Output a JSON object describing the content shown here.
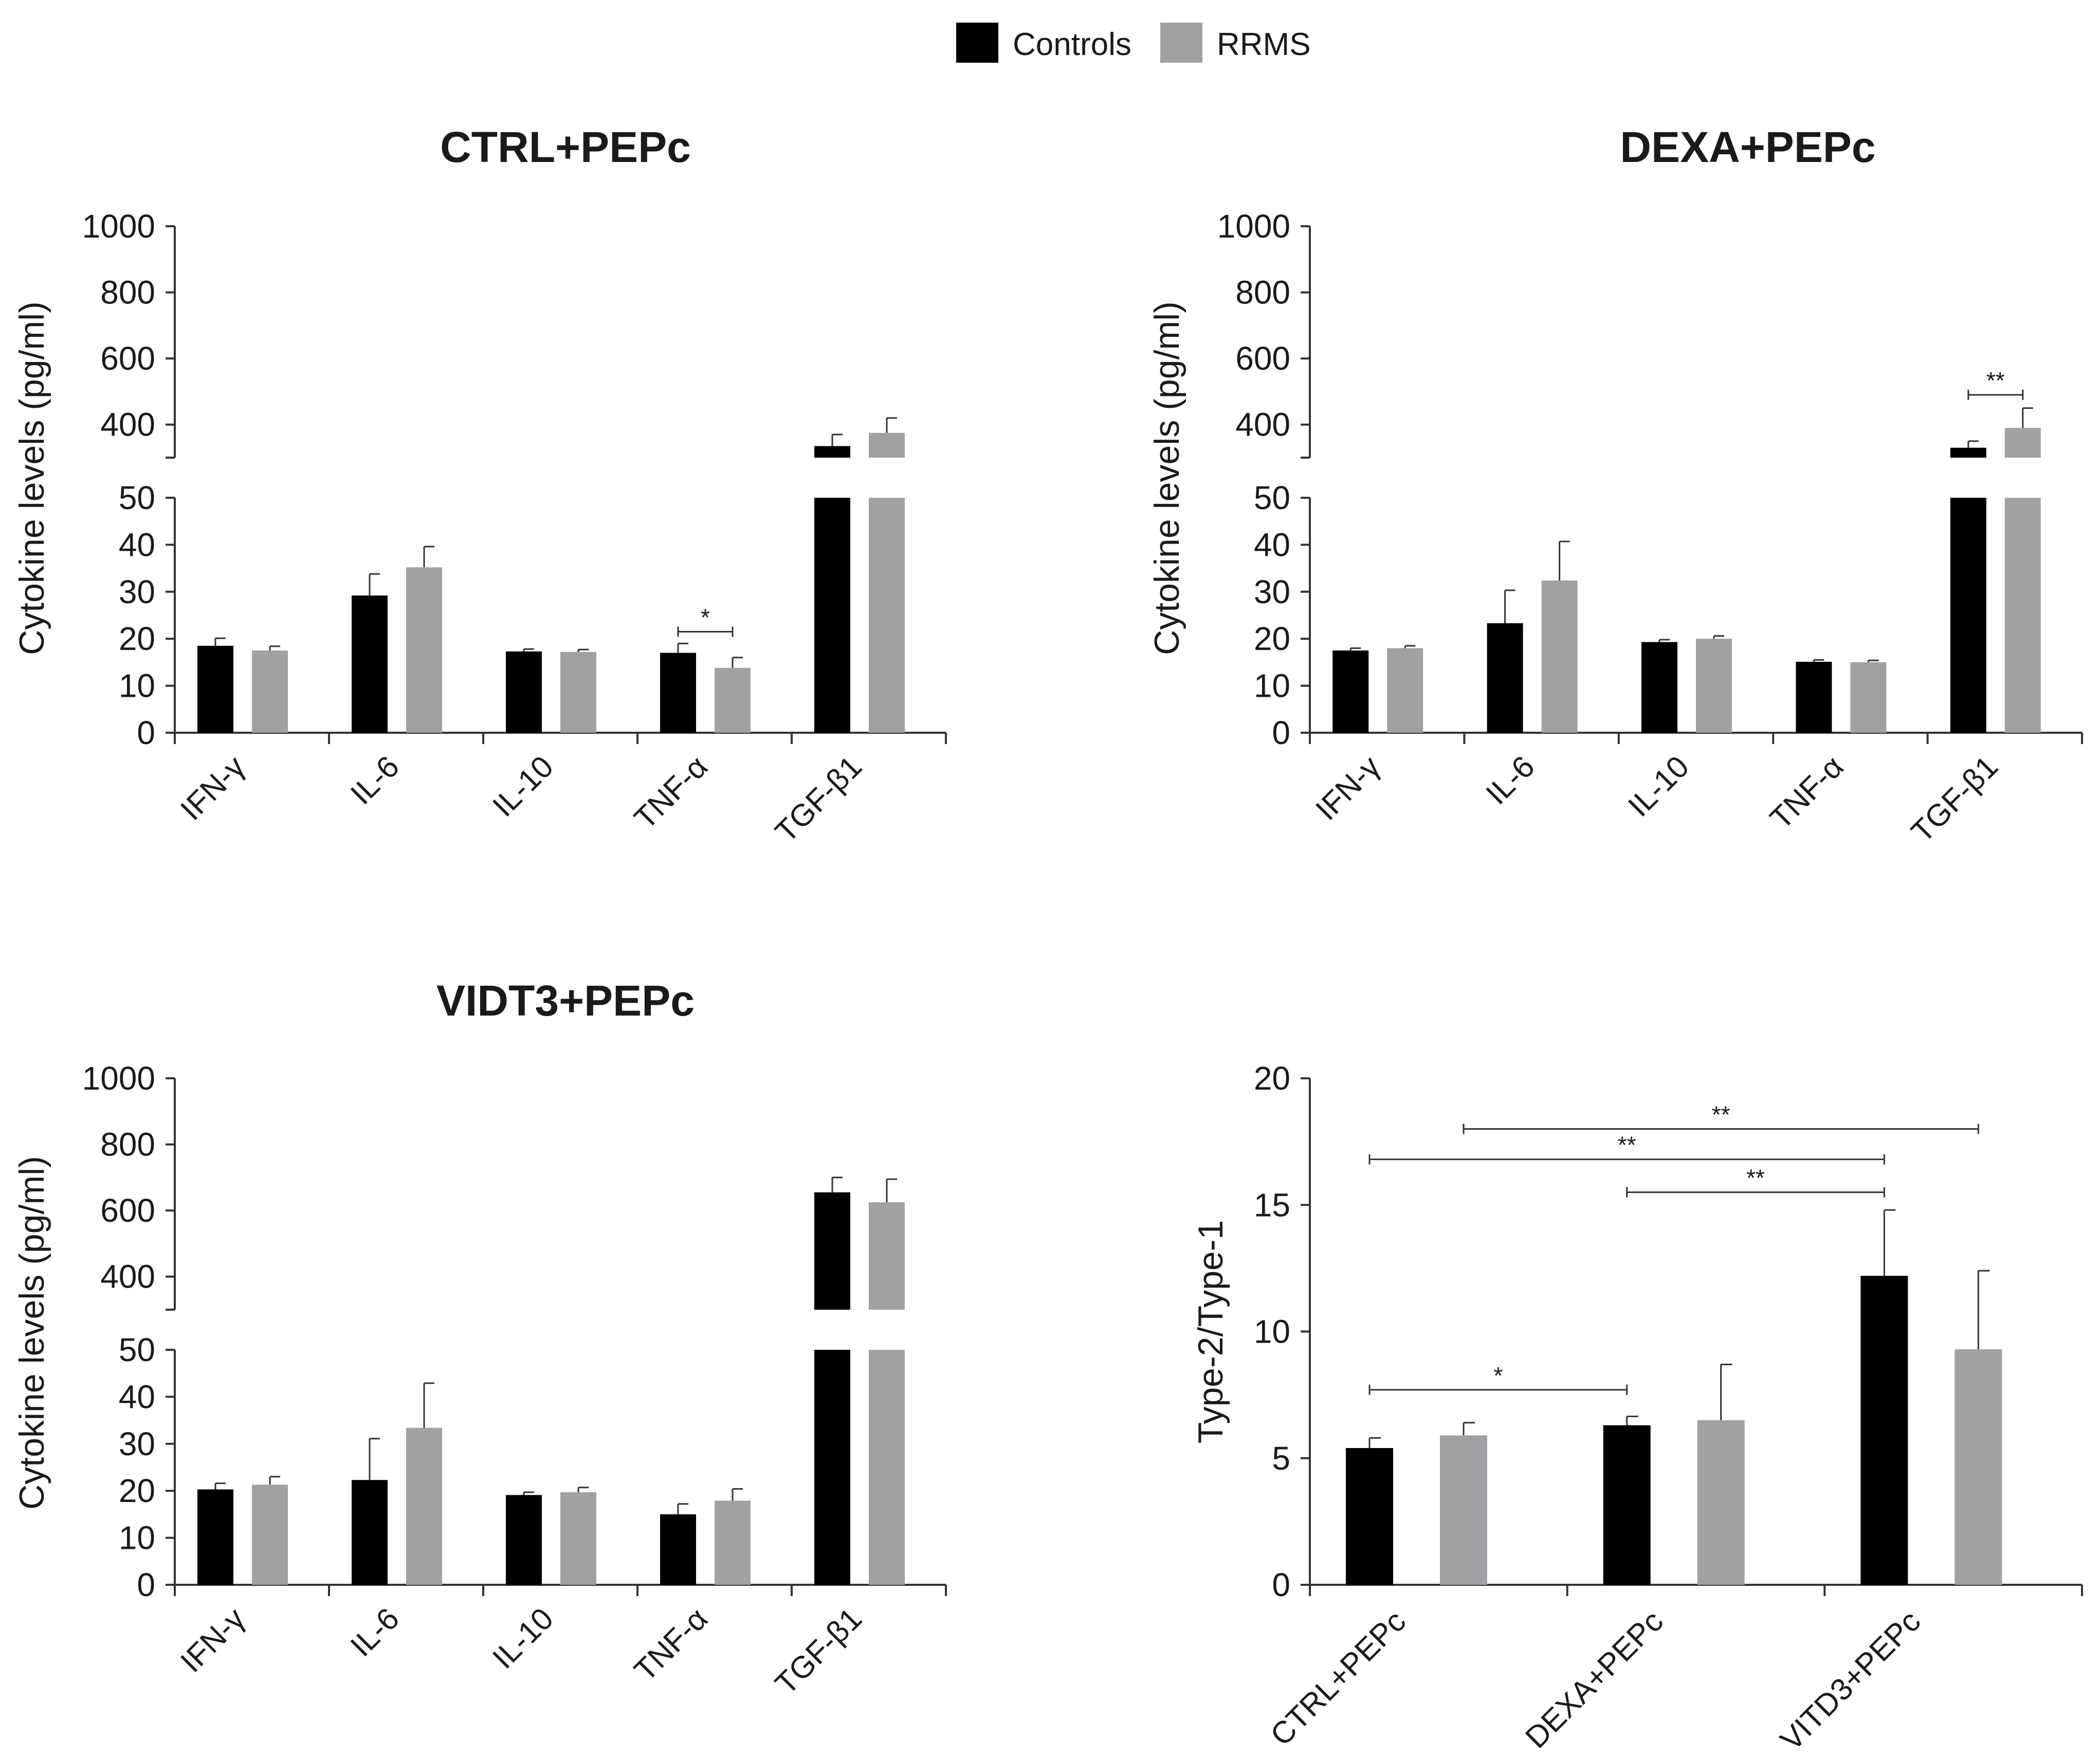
{
  "colors": {
    "controls": "#000000",
    "rrms": "#a1a1a4",
    "axis": "#333333"
  },
  "legend": {
    "items": [
      "Controls",
      "RRMS"
    ]
  },
  "chart_data": [
    {
      "type": "bar",
      "title": "CTRL+PEPc",
      "ylabel": "Cytokine levels (pg/ml)",
      "xlabel": "",
      "categories": [
        "IFN-γ",
        "IL-6",
        "IL-10",
        "TNF-α",
        "TGF-β1"
      ],
      "broken_axis": {
        "lower": [
          0,
          50
        ],
        "upper": [
          300,
          1000
        ]
      },
      "yticks_lower": [
        "0",
        "10",
        "20",
        "30",
        "40",
        "50"
      ],
      "yticks_upper": [
        "400",
        "600",
        "800",
        "1000"
      ],
      "series": [
        {
          "name": "Controls",
          "values": [
            18.5,
            29.2,
            17.3,
            17.0,
            335
          ],
          "errors": [
            1.6,
            4.6,
            0.5,
            2.0,
            35
          ]
        },
        {
          "name": "RRMS",
          "values": [
            17.5,
            35.2,
            17.2,
            13.8,
            375
          ],
          "errors": [
            0.9,
            4.4,
            0.5,
            2.2,
            45
          ]
        }
      ],
      "annotations": [
        {
          "category": 3,
          "label": "*"
        }
      ]
    },
    {
      "type": "bar",
      "title": "DEXA+PEPc",
      "ylabel": "Cytokine levels (pg/ml)",
      "xlabel": "",
      "categories": [
        "IFN-γ",
        "IL-6",
        "IL-10",
        "TNF-α",
        "TGF-β1"
      ],
      "broken_axis": {
        "lower": [
          0,
          50
        ],
        "upper": [
          300,
          1000
        ]
      },
      "yticks_lower": [
        "0",
        "10",
        "20",
        "30",
        "40",
        "50"
      ],
      "yticks_upper": [
        "400",
        "600",
        "800",
        "1000"
      ],
      "series": [
        {
          "name": "Controls",
          "values": [
            17.5,
            23.3,
            19.3,
            15.1,
            330
          ],
          "errors": [
            0.5,
            7.0,
            0.5,
            0.4,
            20
          ]
        },
        {
          "name": "RRMS",
          "values": [
            18.0,
            32.4,
            20.0,
            15.0,
            390
          ],
          "errors": [
            0.5,
            8.3,
            0.6,
            0.4,
            60
          ]
        }
      ],
      "annotations": [
        {
          "category": 4,
          "label": "**"
        }
      ]
    },
    {
      "type": "bar",
      "title": "VIDT3+PEPc",
      "ylabel": "Cytokine levels (pg/ml)",
      "xlabel": "",
      "categories": [
        "IFN-γ",
        "IL-6",
        "IL-10",
        "TNF-α",
        "TGF-β1"
      ],
      "broken_axis": {
        "lower": [
          0,
          50
        ],
        "upper": [
          300,
          1000
        ]
      },
      "yticks_lower": [
        "0",
        "10",
        "20",
        "30",
        "40",
        "50"
      ],
      "yticks_upper": [
        "400",
        "600",
        "800",
        "1000"
      ],
      "series": [
        {
          "name": "Controls",
          "values": [
            20.3,
            22.3,
            19.1,
            15.0,
            655
          ],
          "errors": [
            1.3,
            8.8,
            0.6,
            2.2,
            45
          ]
        },
        {
          "name": "RRMS",
          "values": [
            21.3,
            33.4,
            19.7,
            17.9,
            625
          ],
          "errors": [
            1.7,
            9.5,
            1.0,
            2.5,
            70
          ]
        }
      ],
      "annotations": []
    },
    {
      "type": "bar",
      "title": "",
      "ylabel": "Type-2/Type-1",
      "xlabel": "",
      "categories": [
        "CTRL+PEPc",
        "DEXA+PEPc",
        "VITD3+PEPc"
      ],
      "ylim": [
        0,
        20
      ],
      "yticks": [
        "0",
        "5",
        "10",
        "15",
        "20"
      ],
      "series": [
        {
          "name": "Controls",
          "values": [
            5.4,
            6.3,
            12.2
          ],
          "errors": [
            0.4,
            0.35,
            2.6
          ]
        },
        {
          "name": "RRMS",
          "values": [
            5.9,
            6.5,
            9.3
          ],
          "errors": [
            0.5,
            2.2,
            3.1
          ]
        }
      ],
      "annotations": [
        {
          "from": "CTRL+PEPc Controls",
          "to": "DEXA+PEPc Controls",
          "label": "*"
        },
        {
          "from": "DEXA+PEPc Controls",
          "to": "VITD3+PEPc Controls",
          "label": "**"
        },
        {
          "from": "CTRL+PEPc Controls",
          "to": "VITD3+PEPc Controls",
          "label": "**"
        },
        {
          "from": "CTRL+PEPc RRMS",
          "to": "VITD3+PEPc RRMS",
          "label": "**"
        }
      ]
    }
  ]
}
